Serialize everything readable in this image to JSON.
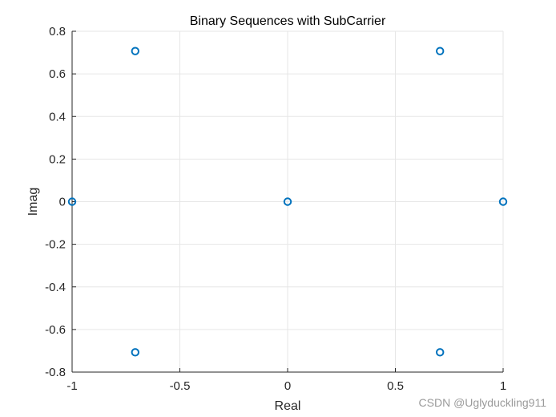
{
  "chart_data": {
    "type": "scatter",
    "title": "Binary Sequences with SubCarrier",
    "xlabel": "Real",
    "ylabel": "Imag",
    "xlim": [
      -1,
      1
    ],
    "ylim": [
      -0.8,
      0.8
    ],
    "xticks": [
      -1,
      -0.5,
      0,
      0.5,
      1
    ],
    "xtick_labels": [
      "-1",
      "-0.5",
      "0",
      "0.5",
      "1"
    ],
    "yticks": [
      0.8,
      0.6,
      0.4,
      0.2,
      0,
      -0.2,
      -0.4,
      -0.6,
      -0.8
    ],
    "ytick_labels": [
      "0.8",
      "0.6",
      "0.4",
      "0.2",
      "0",
      "-0.2",
      "-0.4",
      "-0.6",
      "-0.8"
    ],
    "grid": true,
    "marker": "circle",
    "marker_color": "#0072BD",
    "points": [
      {
        "x": -0.7071,
        "y": 0.7071
      },
      {
        "x": 0.7071,
        "y": 0.7071
      },
      {
        "x": -1,
        "y": 0
      },
      {
        "x": 0,
        "y": 0
      },
      {
        "x": 1,
        "y": 0
      },
      {
        "x": -0.7071,
        "y": -0.7071
      },
      {
        "x": 0.7071,
        "y": -0.7071
      }
    ]
  },
  "watermark": "CSDN @Uglyduckling911"
}
